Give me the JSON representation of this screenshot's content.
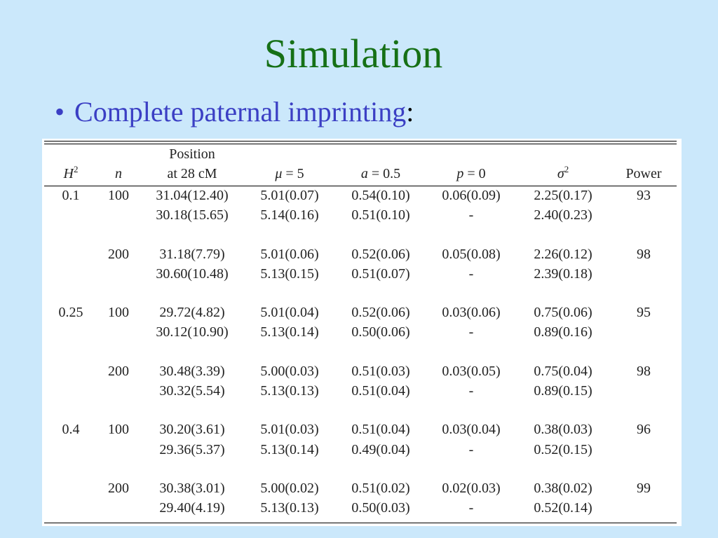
{
  "slide": {
    "title": "Simulation",
    "bullet_marker": "•",
    "bullet_text": "Complete paternal imprinting",
    "bullet_suffix": ":"
  },
  "table": {
    "header_top": {
      "position": "Position"
    },
    "headers": {
      "h2_symbol": "H",
      "h2_exp": "2",
      "n": "n",
      "position": "at 28 cM",
      "mu_symbol": "μ",
      "mu_eq": " = 5",
      "a_symbol": "a",
      "a_eq": " = 0.5",
      "p_symbol": "p",
      "p_eq": " = 0",
      "sigma_symbol": "σ",
      "sigma_exp": "2",
      "power": "Power"
    },
    "rows": [
      {
        "h2": "0.1",
        "n": "100",
        "position": "31.04(12.40)",
        "mu": "5.01(0.07)",
        "a": "0.54(0.10)",
        "p": "0.06(0.09)",
        "sigma2": "2.25(0.17)",
        "power": "93"
      },
      {
        "h2": "",
        "n": "",
        "position": "30.18(15.65)",
        "mu": "5.14(0.16)",
        "a": "0.51(0.10)",
        "p": "-",
        "sigma2": "2.40(0.23)",
        "power": ""
      },
      {
        "h2": "",
        "n": "200",
        "position": "31.18(7.79)",
        "mu": "5.01(0.06)",
        "a": "0.52(0.06)",
        "p": "0.05(0.08)",
        "sigma2": "2.26(0.12)",
        "power": "98"
      },
      {
        "h2": "",
        "n": "",
        "position": "30.60(10.48)",
        "mu": "5.13(0.15)",
        "a": "0.51(0.07)",
        "p": "-",
        "sigma2": "2.39(0.18)",
        "power": ""
      },
      {
        "h2": "0.25",
        "n": "100",
        "position": "29.72(4.82)",
        "mu": "5.01(0.04)",
        "a": "0.52(0.06)",
        "p": "0.03(0.06)",
        "sigma2": "0.75(0.06)",
        "power": "95"
      },
      {
        "h2": "",
        "n": "",
        "position": "30.12(10.90)",
        "mu": "5.13(0.14)",
        "a": "0.50(0.06)",
        "p": "-",
        "sigma2": "0.89(0.16)",
        "power": ""
      },
      {
        "h2": "",
        "n": "200",
        "position": "30.48(3.39)",
        "mu": "5.00(0.03)",
        "a": "0.51(0.03)",
        "p": "0.03(0.05)",
        "sigma2": "0.75(0.04)",
        "power": "98"
      },
      {
        "h2": "",
        "n": "",
        "position": "30.32(5.54)",
        "mu": "5.13(0.13)",
        "a": "0.51(0.04)",
        "p": "-",
        "sigma2": "0.89(0.15)",
        "power": ""
      },
      {
        "h2": "0.4",
        "n": "100",
        "position": "30.20(3.61)",
        "mu": "5.01(0.03)",
        "a": "0.51(0.04)",
        "p": "0.03(0.04)",
        "sigma2": "0.38(0.03)",
        "power": "96"
      },
      {
        "h2": "",
        "n": "",
        "position": "29.36(5.37)",
        "mu": "5.13(0.14)",
        "a": "0.49(0.04)",
        "p": "-",
        "sigma2": "0.52(0.15)",
        "power": ""
      },
      {
        "h2": "",
        "n": "200",
        "position": "30.38(3.01)",
        "mu": "5.00(0.02)",
        "a": "0.51(0.02)",
        "p": "0.02(0.03)",
        "sigma2": "0.38(0.02)",
        "power": "99"
      },
      {
        "h2": "",
        "n": "",
        "position": "29.40(4.19)",
        "mu": "5.13(0.13)",
        "a": "0.50(0.03)",
        "p": "-",
        "sigma2": "0.52(0.14)",
        "power": ""
      }
    ]
  },
  "colors": {
    "background": "#cbe8fb",
    "title": "#167016",
    "bullet": "#3b3fc4"
  }
}
